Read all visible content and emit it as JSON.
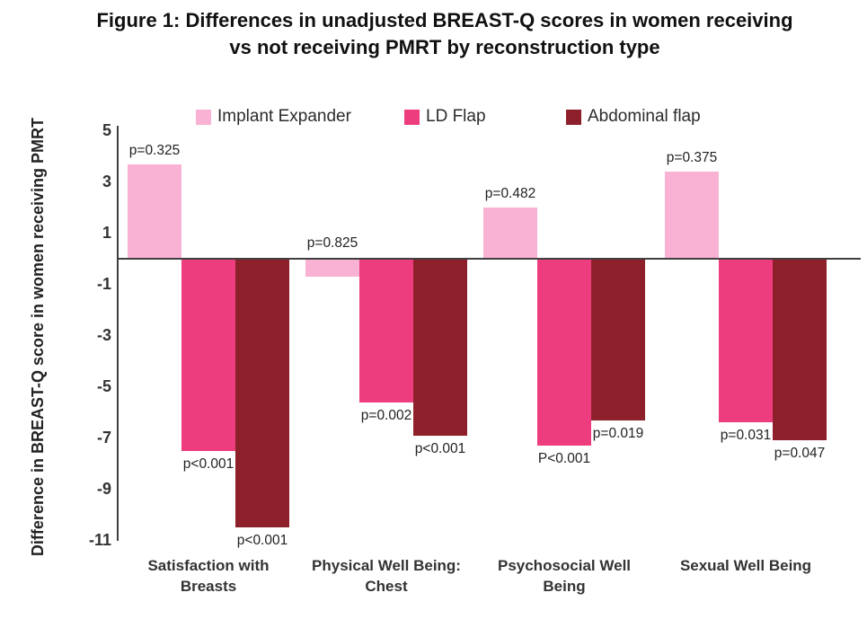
{
  "title": "Figure 1: Differences in unadjusted BREAST-Q scores in women receiving vs not receiving PMRT by reconstruction type",
  "chart_data": {
    "type": "bar",
    "title": "Figure 1: Differences in unadjusted BREAST-Q scores in women receiving vs not receiving PMRT by reconstruction type",
    "y_axis_label": "Difference in BREAST-Q score in women receiving PMRT",
    "categories": [
      "Satisfaction with Breasts",
      "Physical Well Being: Chest",
      "Psychosocial Well Being",
      "Sexual Well Being"
    ],
    "yticks": [
      5,
      3,
      1,
      -1,
      -3,
      -5,
      -7,
      -9,
      -11
    ],
    "ylim": [
      -11.2,
      5.2
    ],
    "grid": false,
    "legend_position": "top",
    "background_color": "#ffffff",
    "axis_color": "#404040",
    "series": [
      {
        "name": "Implant Expander",
        "color": "#F9B2D4",
        "values": [
          3.7,
          -0.7,
          2.0,
          3.4
        ],
        "p_values": [
          "p=0.325",
          "p=0.825",
          "p=0.482",
          "p=0.375"
        ]
      },
      {
        "name": "LD Flap",
        "color": "#EE3D7E",
        "values": [
          -7.5,
          -5.6,
          -7.3,
          -6.4
        ],
        "p_values": [
          "p<0.001",
          "p=0.002",
          "P<0.001",
          "p=0.031"
        ]
      },
      {
        "name": "Abdominal flap",
        "color": "#8E202B",
        "values": [
          -10.5,
          -6.9,
          -6.3,
          -7.1
        ],
        "p_values": [
          "p<0.001",
          "p<0.001",
          "p=0.019",
          "p=0.047"
        ]
      }
    ]
  }
}
